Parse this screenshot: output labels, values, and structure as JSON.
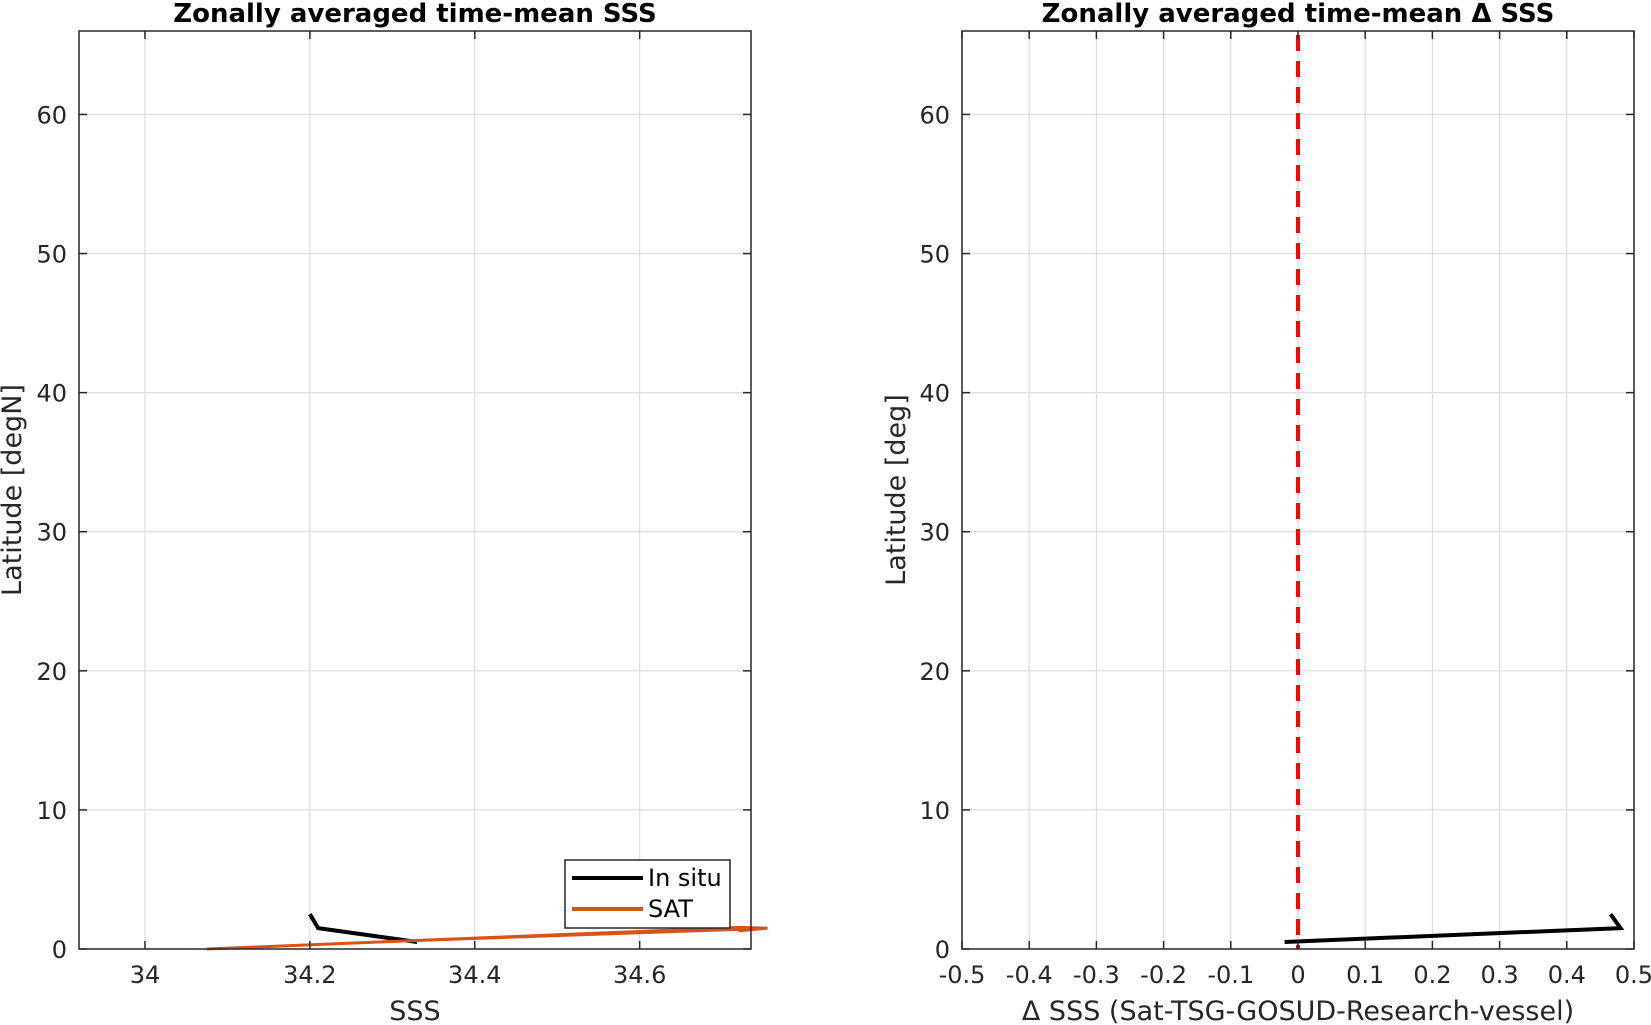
{
  "chart_data": [
    {
      "type": "line",
      "title": "Zonally averaged time-mean SSS",
      "xlabel": "SSS",
      "ylabel": "Latitude [degN]",
      "xlim": [
        33.92,
        34.735
      ],
      "ylim": [
        0,
        66
      ],
      "xticks": [
        34,
        34.2,
        34.4,
        34.6
      ],
      "xticklabels": [
        "34",
        "34.2",
        "34.4",
        "34.6"
      ],
      "yticks": [
        0,
        10,
        20,
        30,
        40,
        50,
        60
      ],
      "yticklabels": [
        "0",
        "10",
        "20",
        "30",
        "40",
        "50",
        "60"
      ],
      "grid": true,
      "legend": "bottom-right",
      "series": [
        {
          "name": "In situ",
          "color": "#000000",
          "x": [
            34.2,
            34.21,
            34.33
          ],
          "y": [
            2.5,
            1.5,
            0.5
          ]
        },
        {
          "name": "SAT",
          "color": "#D95319",
          "x": [
            34.075,
            34.72,
            34.755,
            34.72
          ],
          "y": [
            0.0,
            1.55,
            1.5,
            1.3
          ]
        }
      ]
    },
    {
      "type": "line",
      "title": "Zonally averaged time-mean Δ SSS",
      "xlabel": "Δ SSS (Sat-TSG-GOSUD-Research-vessel)",
      "ylabel": "Latitude [deg]",
      "xlim": [
        -0.5,
        0.5
      ],
      "ylim": [
        0,
        66
      ],
      "xticks": [
        -0.5,
        -0.4,
        -0.3,
        -0.2,
        -0.1,
        0,
        0.1,
        0.2,
        0.3,
        0.4,
        0.5
      ],
      "xticklabels": [
        "-0.5",
        "-0.4",
        "-0.3",
        "-0.2",
        "-0.1",
        "0",
        "0.1",
        "0.2",
        "0.3",
        "0.4",
        "0.5"
      ],
      "yticks": [
        0,
        10,
        20,
        30,
        40,
        50,
        60
      ],
      "yticklabels": [
        "0",
        "10",
        "20",
        "30",
        "40",
        "50",
        "60"
      ],
      "grid": true,
      "reference_line": {
        "x": 0,
        "color": "#FF0000",
        "style": "dashed"
      },
      "series": [
        {
          "color": "#000000",
          "x": [
            -0.02,
            0.48,
            0.465
          ],
          "y": [
            0.5,
            1.5,
            2.5
          ]
        }
      ]
    }
  ]
}
